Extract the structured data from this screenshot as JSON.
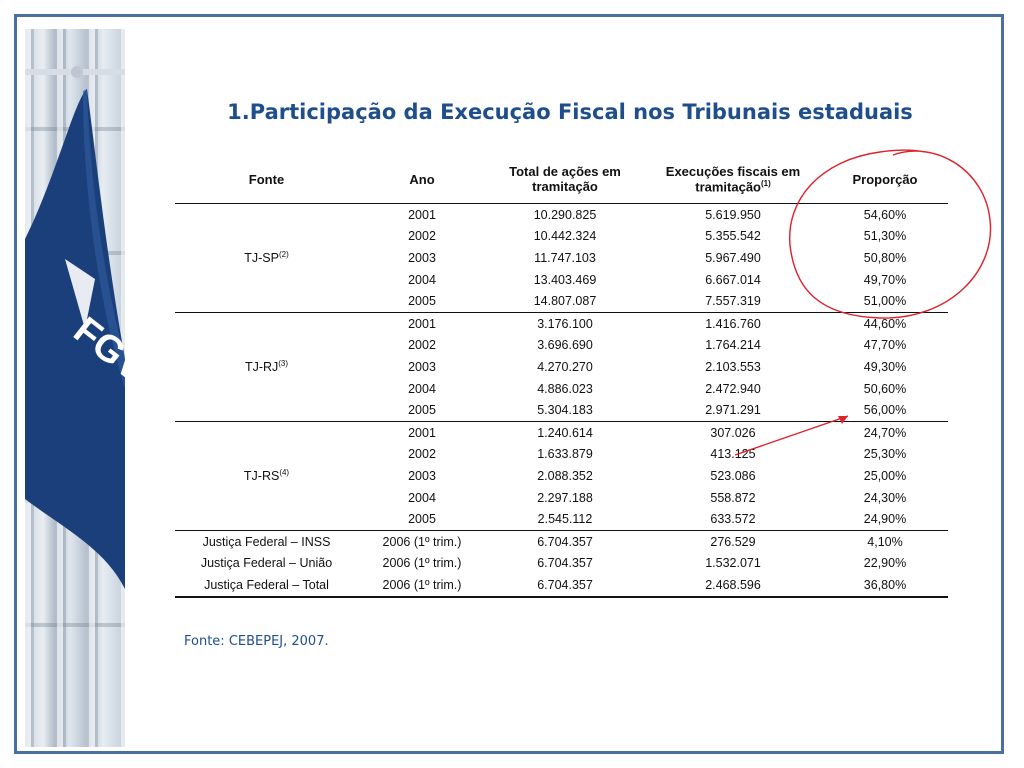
{
  "title": "1.Participação da Execução Fiscal nos Tribunais estaduais",
  "logo_text": "FGV",
  "headers": {
    "fonte": "Fonte",
    "ano": "Ano",
    "total": "Total de ações em tramitação",
    "exec": "Execuções fiscais em tramitação",
    "exec_sup": "(1)",
    "prop": "Proporção"
  },
  "groups": [
    {
      "source": "TJ-SP",
      "sup": "(2)",
      "rows": [
        [
          "2001",
          "10.290.825",
          "5.619.950",
          "54,60%"
        ],
        [
          "2002",
          "10.442.324",
          "5.355.542",
          "51,30%"
        ],
        [
          "2003",
          "11.747.103",
          "5.967.490",
          "50,80%"
        ],
        [
          "2004",
          "13.403.469",
          "6.667.014",
          "49,70%"
        ],
        [
          "2005",
          "14.807.087",
          "7.557.319",
          "51,00%"
        ]
      ]
    },
    {
      "source": "TJ-RJ",
      "sup": "(3)",
      "rows": [
        [
          "2001",
          "3.176.100",
          "1.416.760",
          "44,60%"
        ],
        [
          "2002",
          "3.696.690",
          "1.764.214",
          "47,70%"
        ],
        [
          "2003",
          "4.270.270",
          "2.103.553",
          "49,30%"
        ],
        [
          "2004",
          "4.886.023",
          "2.472.940",
          "50,60%"
        ],
        [
          "2005",
          "5.304.183",
          "2.971.291",
          "56,00%"
        ]
      ]
    },
    {
      "source": "TJ-RS",
      "sup": "(4)",
      "rows": [
        [
          "2001",
          "1.240.614",
          "307.026",
          "24,70%"
        ],
        [
          "2002",
          "1.633.879",
          "413.125",
          "25,30%"
        ],
        [
          "2003",
          "2.088.352",
          "523.086",
          "25,00%"
        ],
        [
          "2004",
          "2.297.188",
          "558.872",
          "24,30%"
        ],
        [
          "2005",
          "2.545.112",
          "633.572",
          "24,90%"
        ]
      ]
    }
  ],
  "federal_rows": [
    [
      "Justiça Federal – INSS",
      "2006 (1º trim.)",
      "6.704.357",
      "276.529",
      "4,10%"
    ],
    [
      "Justiça Federal – União",
      "2006 (1º trim.)",
      "6.704.357",
      "1.532.071",
      "22,90%"
    ],
    [
      "Justiça Federal – Total",
      "2006 (1º trim.)",
      "6.704.357",
      "2.468.596",
      "36,80%"
    ]
  ],
  "source_note": "Fonte: CEBEPEJ, 2007.",
  "colors": {
    "frame": "#4a6fa3",
    "title": "#1f4e8c",
    "annotation": "#e0202a",
    "flag": "#1b3f7a"
  }
}
